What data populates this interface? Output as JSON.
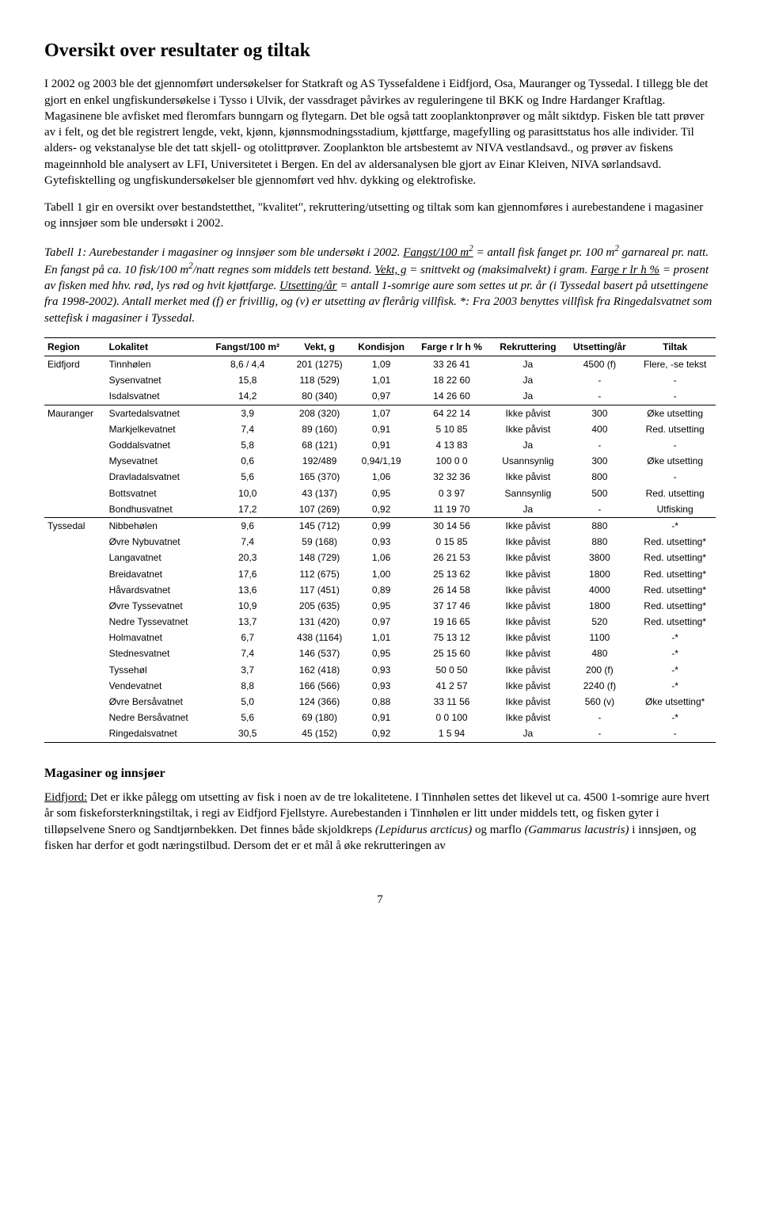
{
  "title": "Oversikt over resultater og tiltak",
  "para1": "I 2002 og 2003 ble det gjennomført undersøkelser for Statkraft og AS Tyssefaldene i Eidfjord, Osa, Mauranger og Tyssedal. I tillegg ble det gjort en enkel ungfiskundersøkelse i Tysso i Ulvik, der vassdraget påvirkes av reguleringene til BKK og Indre Hardanger Kraftlag. Magasinene ble avfisket med fleromfars bunngarn og flytegarn. Det ble også tatt zooplanktonprøver og målt siktdyp. Fisken ble tatt prøver av i felt, og det ble registrert lengde, vekt, kjønn, kjønnsmodningsstadium, kjøttfarge, magefylling og parasittstatus hos alle individer. Til alders- og vekstanalyse ble det tatt skjell- og otolittprøver. Zooplankton ble artsbestemt av NIVA vestlandsavd., og prøver av fiskens mageinnhold ble analysert av LFI, Universitetet i Bergen. En del av aldersanalysen ble gjort av Einar Kleiven, NIVA sørlandsavd. Gytefisktelling og ungfiskundersøkelser ble gjennomført ved hhv. dykking og elektrofiske.",
  "para2": "Tabell 1 gir en oversikt over bestandstetthet, \"kvalitet\", rekruttering/utsetting og tiltak som kan gjennomføres i aurebestandene i magasiner og innsjøer som ble undersøkt i 2002.",
  "caption": {
    "lead": "Tabell 1: Aurebestander i magasiner og innsjøer som ble undersøkt i 2002. ",
    "u1": "Fangst/100 m",
    "u1_sup": "2",
    "seg1": " = antall fisk fanget pr. 100 m",
    "sup1": "2",
    "seg2": " garnareal pr. natt. En fangst på ca. 10 fisk/100 m",
    "sup2": "2",
    "seg3": "/natt regnes som middels tett bestand. ",
    "u2": "Vekt, g",
    "seg4": " = snittvekt og (maksimalvekt) i gram. ",
    "u3": "Farge r lr h %",
    "seg5": " = prosent av fisken med hhv. rød, lys rød og hvit kjøttfarge. ",
    "u4": "Utsetting/år",
    "seg6": " = antall 1-somrige aure som settes ut pr. år (i Tyssedal basert på utsettingene fra 1998-2002). Antall merket med (f) er frivillig, og (v) er utsetting av flerårig villfisk. *: Fra 2003 benyttes villfisk fra Ringedalsvatnet som settefisk i magasiner i Tyssedal."
  },
  "table": {
    "columns": [
      "Region",
      "Lokalitet",
      "Fangst/100 m²",
      "Vekt, g",
      "Kondisjon",
      "Farge r lr h %",
      "Rekruttering",
      "Utsetting/år",
      "Tiltak"
    ],
    "rows": [
      {
        "region": "Eidfjord",
        "lokalitet": "Tinnhølen",
        "fangst": "8,6 / 4,4",
        "vekt": "201 (1275)",
        "kond": "1,09",
        "farge": "33 26 41",
        "rekr": "Ja",
        "uts": "4500 (f)",
        "tiltak": "Flere, -se tekst",
        "sep": true
      },
      {
        "region": "",
        "lokalitet": "Sysenvatnet",
        "fangst": "15,8",
        "vekt": "118 (529)",
        "kond": "1,01",
        "farge": "18 22 60",
        "rekr": "Ja",
        "uts": "-",
        "tiltak": "-",
        "sep": false
      },
      {
        "region": "",
        "lokalitet": "Isdalsvatnet",
        "fangst": "14,2",
        "vekt": "80 (340)",
        "kond": "0,97",
        "farge": "14 26 60",
        "rekr": "Ja",
        "uts": "-",
        "tiltak": "-",
        "sep": false
      },
      {
        "region": "Mauranger",
        "lokalitet": "Svartedalsvatnet",
        "fangst": "3,9",
        "vekt": "208 (320)",
        "kond": "1,07",
        "farge": "64 22 14",
        "rekr": "Ikke påvist",
        "uts": "300",
        "tiltak": "Øke utsetting",
        "sep": true
      },
      {
        "region": "",
        "lokalitet": "Markjelkevatnet",
        "fangst": "7,4",
        "vekt": "89 (160)",
        "kond": "0,91",
        "farge": "5 10 85",
        "rekr": "Ikke påvist",
        "uts": "400",
        "tiltak": "Red. utsetting",
        "sep": false
      },
      {
        "region": "",
        "lokalitet": "Goddalsvatnet",
        "fangst": "5,8",
        "vekt": "68 (121)",
        "kond": "0,91",
        "farge": "4 13 83",
        "rekr": "Ja",
        "uts": "-",
        "tiltak": "-",
        "sep": false
      },
      {
        "region": "",
        "lokalitet": "Mysevatnet",
        "fangst": "0,6",
        "vekt": "192/489",
        "kond": "0,94/1,19",
        "farge": "100 0 0",
        "rekr": "Usannsynlig",
        "uts": "300",
        "tiltak": "Øke utsetting",
        "sep": false
      },
      {
        "region": "",
        "lokalitet": "Dravladalsvatnet",
        "fangst": "5,6",
        "vekt": "165 (370)",
        "kond": "1,06",
        "farge": "32 32 36",
        "rekr": "Ikke påvist",
        "uts": "800",
        "tiltak": "-",
        "sep": false
      },
      {
        "region": "",
        "lokalitet": "Bottsvatnet",
        "fangst": "10,0",
        "vekt": "43 (137)",
        "kond": "0,95",
        "farge": "0 3 97",
        "rekr": "Sannsynlig",
        "uts": "500",
        "tiltak": "Red. utsetting",
        "sep": false
      },
      {
        "region": "",
        "lokalitet": "Bondhusvatnet",
        "fangst": "17,2",
        "vekt": "107 (269)",
        "kond": "0,92",
        "farge": "11 19 70",
        "rekr": "Ja",
        "uts": "-",
        "tiltak": "Utfisking",
        "sep": false
      },
      {
        "region": "Tyssedal",
        "lokalitet": "Nibbehølen",
        "fangst": "9,6",
        "vekt": "145 (712)",
        "kond": "0,99",
        "farge": "30 14 56",
        "rekr": "Ikke påvist",
        "uts": "880",
        "tiltak": "-*",
        "sep": true
      },
      {
        "region": "",
        "lokalitet": "Øvre Nybuvatnet",
        "fangst": "7,4",
        "vekt": "59 (168)",
        "kond": "0,93",
        "farge": "0 15 85",
        "rekr": "Ikke påvist",
        "uts": "880",
        "tiltak": "Red. utsetting*",
        "sep": false
      },
      {
        "region": "",
        "lokalitet": "Langavatnet",
        "fangst": "20,3",
        "vekt": "148 (729)",
        "kond": "1,06",
        "farge": "26 21 53",
        "rekr": "Ikke påvist",
        "uts": "3800",
        "tiltak": "Red. utsetting*",
        "sep": false
      },
      {
        "region": "",
        "lokalitet": "Breidavatnet",
        "fangst": "17,6",
        "vekt": "112 (675)",
        "kond": "1,00",
        "farge": "25 13 62",
        "rekr": "Ikke påvist",
        "uts": "1800",
        "tiltak": "Red. utsetting*",
        "sep": false
      },
      {
        "region": "",
        "lokalitet": "Håvardsvatnet",
        "fangst": "13,6",
        "vekt": "117 (451)",
        "kond": "0,89",
        "farge": "26 14 58",
        "rekr": "Ikke påvist",
        "uts": "4000",
        "tiltak": "Red. utsetting*",
        "sep": false
      },
      {
        "region": "",
        "lokalitet": "Øvre Tyssevatnet",
        "fangst": "10,9",
        "vekt": "205 (635)",
        "kond": "0,95",
        "farge": "37 17 46",
        "rekr": "Ikke påvist",
        "uts": "1800",
        "tiltak": "Red. utsetting*",
        "sep": false
      },
      {
        "region": "",
        "lokalitet": "Nedre Tyssevatnet",
        "fangst": "13,7",
        "vekt": "131 (420)",
        "kond": "0,97",
        "farge": "19 16 65",
        "rekr": "Ikke påvist",
        "uts": "520",
        "tiltak": "Red. utsetting*",
        "sep": false
      },
      {
        "region": "",
        "lokalitet": "Holmavatnet",
        "fangst": "6,7",
        "vekt": "438 (1164)",
        "kond": "1,01",
        "farge": "75 13 12",
        "rekr": "Ikke påvist",
        "uts": "1100",
        "tiltak": "-*",
        "sep": false
      },
      {
        "region": "",
        "lokalitet": "Stednesvatnet",
        "fangst": "7,4",
        "vekt": "146 (537)",
        "kond": "0,95",
        "farge": "25 15 60",
        "rekr": "Ikke påvist",
        "uts": "480",
        "tiltak": "-*",
        "sep": false
      },
      {
        "region": "",
        "lokalitet": "Tyssehøl",
        "fangst": "3,7",
        "vekt": "162 (418)",
        "kond": "0,93",
        "farge": "50 0 50",
        "rekr": "Ikke påvist",
        "uts": "200 (f)",
        "tiltak": "-*",
        "sep": false
      },
      {
        "region": "",
        "lokalitet": "Vendevatnet",
        "fangst": "8,8",
        "vekt": "166 (566)",
        "kond": "0,93",
        "farge": "41 2 57",
        "rekr": "Ikke påvist",
        "uts": "2240 (f)",
        "tiltak": "-*",
        "sep": false
      },
      {
        "region": "",
        "lokalitet": "Øvre Bersåvatnet",
        "fangst": "5,0",
        "vekt": "124 (366)",
        "kond": "0,88",
        "farge": "33 11 56",
        "rekr": "Ikke påvist",
        "uts": "560 (v)",
        "tiltak": "Øke utsetting*",
        "sep": false
      },
      {
        "region": "",
        "lokalitet": "Nedre Bersåvatnet",
        "fangst": "5,6",
        "vekt": "69 (180)",
        "kond": "0,91",
        "farge": "0 0 100",
        "rekr": "Ikke påvist",
        "uts": "-",
        "tiltak": "-*",
        "sep": false
      },
      {
        "region": "",
        "lokalitet": "Ringedalsvatnet",
        "fangst": "30,5",
        "vekt": "45 (152)",
        "kond": "0,92",
        "farge": "1 5 94",
        "rekr": "Ja",
        "uts": "-",
        "tiltak": "-",
        "sep": false
      }
    ]
  },
  "h2": "Magasiner og innsjøer",
  "para3_lead_u": "Eidfjord:",
  "para3_rest": " Det er ikke pålegg om utsetting av fisk i noen av de tre lokalitetene. I Tinnhølen settes det likevel ut ca. 4500 1-somrige aure hvert år som fiskeforsterkningstiltak, i regi av Eidfjord Fjellstyre. Aurebestanden i Tinnhølen er litt under middels tett, og fisken gyter i tilløpselvene Snero og Sandtjørnbekken. Det finnes både skjoldkreps ",
  "para3_sp1_i": "(Lepidurus arcticus)",
  "para3_mid": " og marflo ",
  "para3_sp2_i": "(Gammarus lacustris)",
  "para3_end": " i innsjøen, og fisken har derfor et godt næringstilbud. Dersom det er et mål å øke rekrutteringen av",
  "pagenum": "7"
}
